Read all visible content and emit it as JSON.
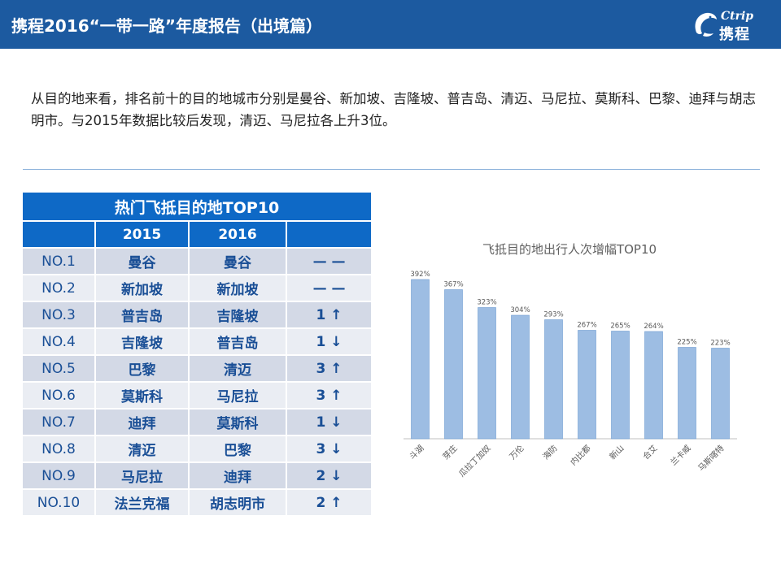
{
  "header": {
    "title": "携程2016“一带一路”年度报告（出境篇）",
    "logo_latin": "Ctrip",
    "logo_cn": "携程",
    "bg_color": "#1c5aa0"
  },
  "intro_text": "从目的地来看，排名前十的目的地城市分别是曼谷、新加坡、吉隆坡、普吉岛、清迈、马尼拉、莫斯科、巴黎、迪拜与胡志明市。与2015年数据比较后发现，清迈、马尼拉各上升3位。",
  "table": {
    "title": "热门飞抵目的地TOP10",
    "headers": [
      "",
      "2015",
      "2016",
      ""
    ],
    "rows": [
      {
        "rank": "NO.1",
        "y2015": "曼谷",
        "y2016": "曼谷",
        "change": "— —"
      },
      {
        "rank": "NO.2",
        "y2015": "新加坡",
        "y2016": "新加坡",
        "change": "— —"
      },
      {
        "rank": "NO.3",
        "y2015": "普吉岛",
        "y2016": "吉隆坡",
        "change": "1 ↑"
      },
      {
        "rank": "NO.4",
        "y2015": "吉隆坡",
        "y2016": "普吉岛",
        "change": "1 ↓"
      },
      {
        "rank": "NO.5",
        "y2015": "巴黎",
        "y2016": "清迈",
        "change": "3 ↑"
      },
      {
        "rank": "NO.6",
        "y2015": "莫斯科",
        "y2016": "马尼拉",
        "change": "3 ↑"
      },
      {
        "rank": "NO.7",
        "y2015": "迪拜",
        "y2016": "莫斯科",
        "change": "1 ↓"
      },
      {
        "rank": "NO.8",
        "y2015": "清迈",
        "y2016": "巴黎",
        "change": "3 ↓"
      },
      {
        "rank": "NO.9",
        "y2015": "马尼拉",
        "y2016": "迪拜",
        "change": "2 ↓"
      },
      {
        "rank": "NO.10",
        "y2015": "法兰克福",
        "y2016": "胡志明市",
        "change": "2 ↑"
      }
    ],
    "header_color": "#0e69c6"
  },
  "chart_data": {
    "type": "bar",
    "title": "飞抵目的地出行人次增幅TOP10",
    "categories": [
      "斗湖",
      "芽庄",
      "瓜拉丁加奴",
      "万伦",
      "海防",
      "内比都",
      "新山",
      "合艾",
      "兰卡威",
      "马斯喀特"
    ],
    "values": [
      392,
      367,
      323,
      304,
      293,
      267,
      265,
      264,
      225,
      223
    ],
    "data_labels": [
      "392%",
      "367%",
      "323%",
      "304%",
      "293%",
      "267%",
      "265%",
      "264%",
      "225%",
      "223%"
    ],
    "xlabel": "",
    "ylabel": "",
    "ylim": [
      0,
      400
    ],
    "grid": false,
    "bar_color": "#9dbde3"
  }
}
